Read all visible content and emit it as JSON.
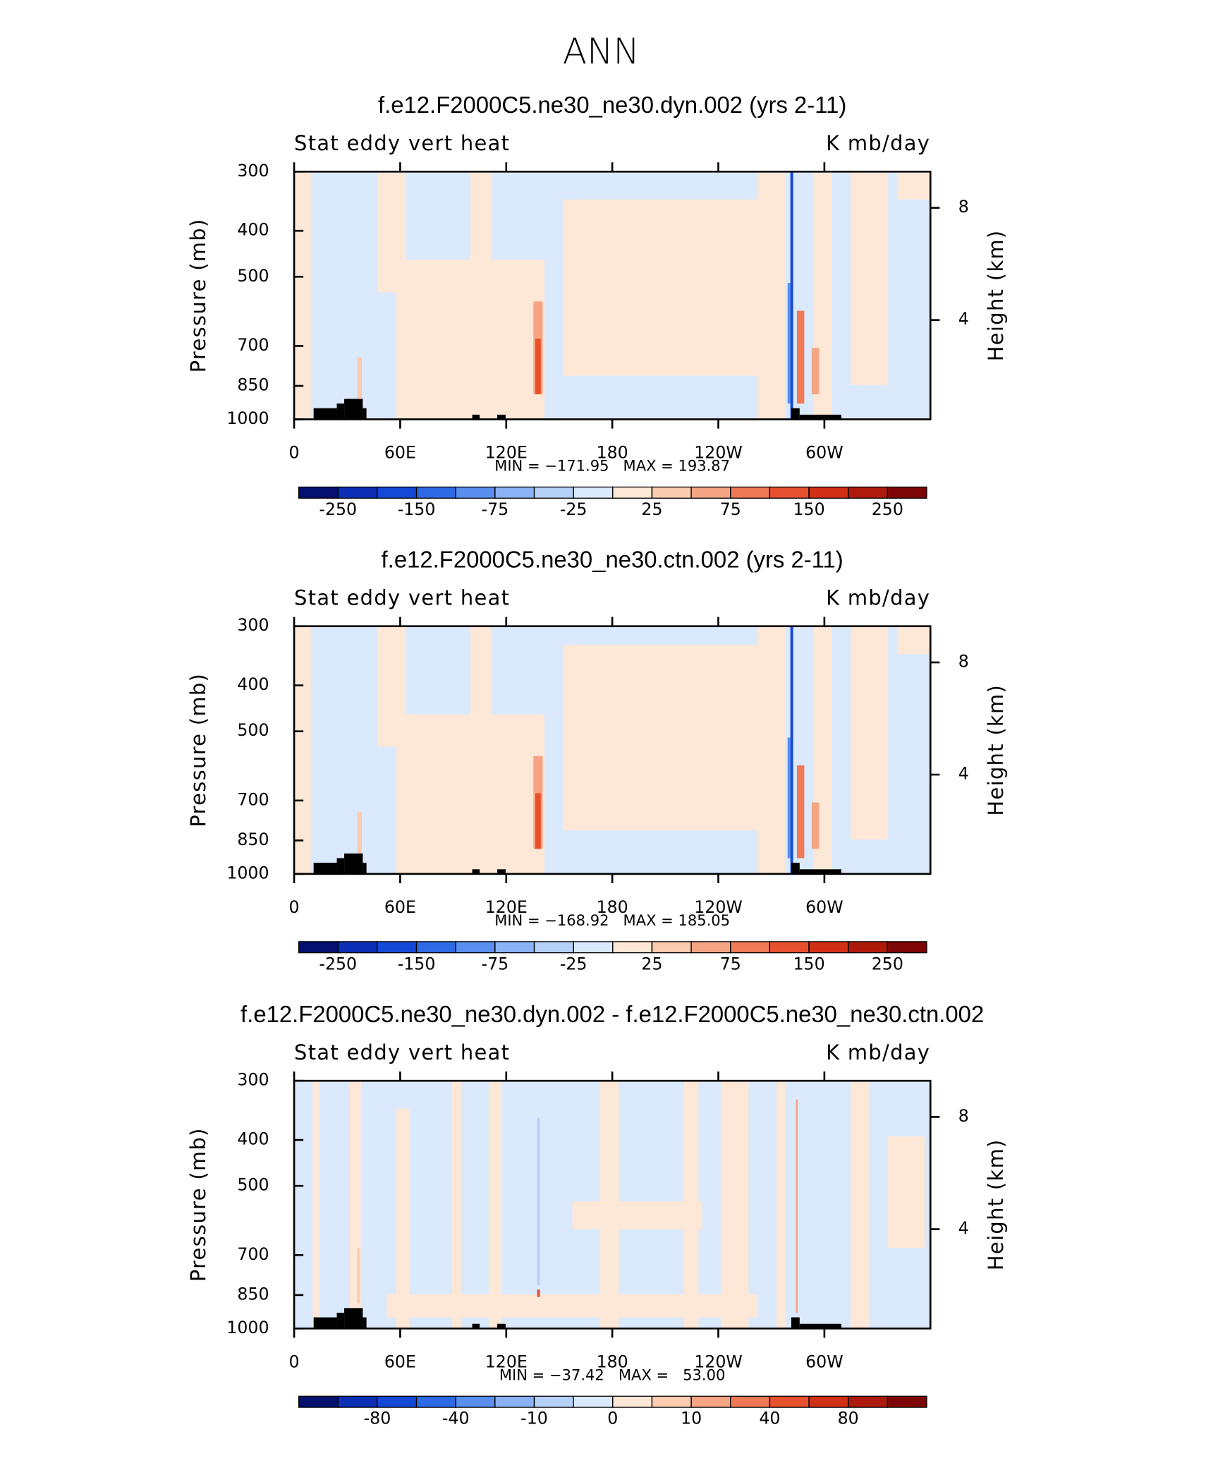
{
  "title": "ANN",
  "chart_data": [
    {
      "type": "contour",
      "title": "f.e12.F2000C5.ne30_ne30.dyn.002 (yrs 2-11)",
      "left_label": "Stat eddy vert heat",
      "right_label": "K mb/day",
      "stats": "MIN = −171.95   MAX = 193.87",
      "ylabel": "Pressure (mb)",
      "y2label": "Height (km)",
      "xlim": [
        0,
        360
      ],
      "xticks": [
        0,
        {
          "value": 60,
          "label": "60E"
        },
        {
          "value": 120,
          "label": "120E"
        },
        180,
        {
          "value": 240,
          "label": "120W"
        },
        {
          "value": 300,
          "label": "60W"
        }
      ],
      "ylim": [
        1000,
        300
      ],
      "log_y": true,
      "yticks": [
        300,
        400,
        500,
        700,
        850,
        1000
      ],
      "y2lim": [
        0.46,
        9.29
      ],
      "y2ticks": [
        4,
        8
      ],
      "colorbar": {
        "colors": [
          "#06106e",
          "#0c2fb5",
          "#1448d6",
          "#2f6ae6",
          "#5a8ff0",
          "#8ab2f5",
          "#b6d1f8",
          "#dbe9fc",
          "#fde7d6",
          "#fbccb0",
          "#f5a583",
          "#ef7a55",
          "#e8512e",
          "#d22f17",
          "#ae1a0c",
          "#7e0606"
        ],
        "labels": [
          -250,
          null,
          -150,
          null,
          -75,
          null,
          -25,
          null,
          25,
          null,
          75,
          null,
          150,
          null,
          250
        ]
      }
    },
    {
      "type": "contour",
      "title": "f.e12.F2000C5.ne30_ne30.ctn.002 (yrs 2-11)",
      "left_label": "Stat eddy vert heat",
      "right_label": "K mb/day",
      "stats": "MIN = −168.92   MAX = 185.05",
      "ylabel": "Pressure (mb)",
      "y2label": "Height (km)",
      "xlim": [
        0,
        360
      ],
      "xticks": [
        0,
        {
          "value": 60,
          "label": "60E"
        },
        {
          "value": 120,
          "label": "120E"
        },
        180,
        {
          "value": 240,
          "label": "120W"
        },
        {
          "value": 300,
          "label": "60W"
        }
      ],
      "ylim": [
        1000,
        300
      ],
      "log_y": true,
      "yticks": [
        300,
        400,
        500,
        700,
        850,
        1000
      ],
      "y2lim": [
        0.46,
        9.29
      ],
      "y2ticks": [
        4,
        8
      ],
      "colorbar": {
        "colors": [
          "#06106e",
          "#0c2fb5",
          "#1448d6",
          "#2f6ae6",
          "#5a8ff0",
          "#8ab2f5",
          "#b6d1f8",
          "#dbe9fc",
          "#fde7d6",
          "#fbccb0",
          "#f5a583",
          "#ef7a55",
          "#e8512e",
          "#d22f17",
          "#ae1a0c",
          "#7e0606"
        ],
        "labels": [
          -250,
          null,
          -150,
          null,
          -75,
          null,
          -25,
          null,
          25,
          null,
          75,
          null,
          150,
          null,
          250
        ]
      }
    },
    {
      "type": "contour",
      "title": "f.e12.F2000C5.ne30_ne30.dyn.002 - f.e12.F2000C5.ne30_ne30.ctn.002",
      "left_label": "Stat eddy vert heat",
      "right_label": "K mb/day",
      "stats": "MIN = −37.42   MAX =   53.00",
      "ylabel": "Pressure (mb)",
      "y2label": "Height (km)",
      "xlim": [
        0,
        360
      ],
      "xticks": [
        0,
        {
          "value": 60,
          "label": "60E"
        },
        {
          "value": 120,
          "label": "120E"
        },
        180,
        {
          "value": 240,
          "label": "120W"
        },
        {
          "value": 300,
          "label": "60W"
        }
      ],
      "ylim": [
        1000,
        300
      ],
      "log_y": true,
      "yticks": [
        300,
        400,
        500,
        700,
        850,
        1000
      ],
      "y2lim": [
        0.46,
        9.29
      ],
      "y2ticks": [
        4,
        8
      ],
      "colorbar": {
        "colors": [
          "#06106e",
          "#0c2fb5",
          "#1448d6",
          "#2f6ae6",
          "#5a8ff0",
          "#8ab2f5",
          "#b6d1f8",
          "#dbe9fc",
          "#fde7d6",
          "#fbccb0",
          "#f5a583",
          "#ef7a55",
          "#e8512e",
          "#d22f17",
          "#ae1a0c",
          "#7e0606"
        ],
        "labels": [
          null,
          -80,
          null,
          -40,
          null,
          -10,
          null,
          0,
          null,
          10,
          null,
          40,
          null,
          80,
          null
        ]
      }
    }
  ]
}
